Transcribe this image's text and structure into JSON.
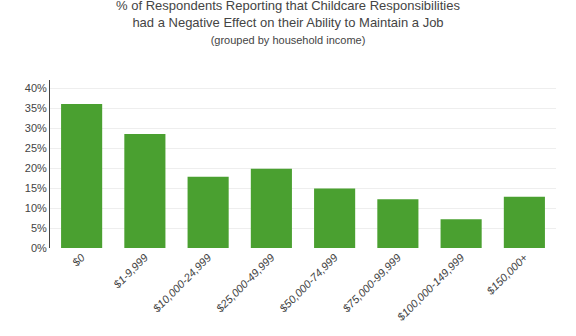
{
  "chart_data": {
    "type": "bar",
    "title": "% of Respondents Reporting that Childcare Responsibilities\nhad a Negative Effect on their Ability to Maintain a Job",
    "subtitle": "(grouped by household income)",
    "categories": [
      "$0",
      "$1-9,999",
      "$10,000-24,999",
      "$25,000-49,999",
      "$50,000-74,999",
      "$75,000-99,999",
      "$100,000-149,999",
      "$150,000+"
    ],
    "values": [
      0.36,
      0.285,
      0.178,
      0.198,
      0.149,
      0.122,
      0.072,
      0.128
    ],
    "color": "#4aA030",
    "ylim": [
      0,
      0.42
    ],
    "yticks": [
      {
        "value": 0.0,
        "label": "0%"
      },
      {
        "value": 0.05,
        "label": "5%"
      },
      {
        "value": 0.1,
        "label": "10%"
      },
      {
        "value": 0.15,
        "label": "15%"
      },
      {
        "value": 0.2,
        "label": "20%"
      },
      {
        "value": 0.25,
        "label": "25%"
      },
      {
        "value": 0.3,
        "label": "30%"
      },
      {
        "value": 0.35,
        "label": "35%"
      },
      {
        "value": 0.4,
        "label": "40%"
      }
    ],
    "grid": true
  }
}
